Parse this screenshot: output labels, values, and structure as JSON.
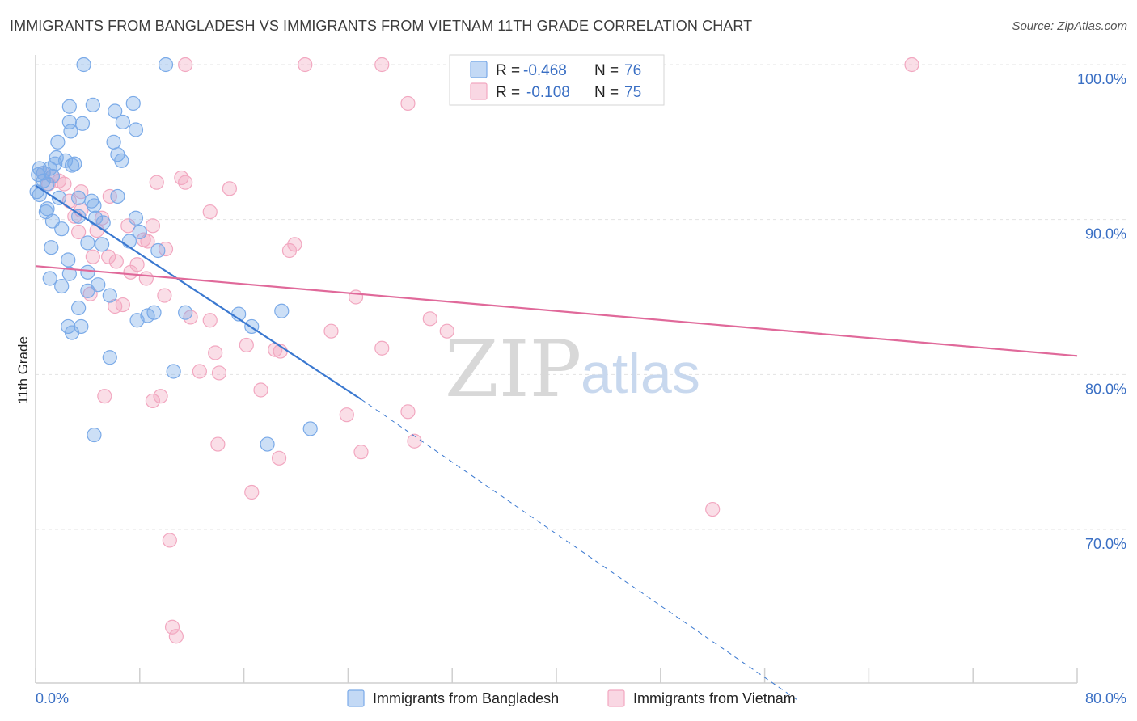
{
  "title": "IMMIGRANTS FROM BANGLADESH VS IMMIGRANTS FROM VIETNAM 11TH GRADE CORRELATION CHART",
  "source": "Source: ZipAtlas.com",
  "watermark": {
    "zip": "ZIP",
    "atlas": "atlas"
  },
  "legend_top": {
    "rows": [
      {
        "r_label": "R =",
        "r_value": "-0.468",
        "n_label": "N =",
        "n_value": "76"
      },
      {
        "r_label": "R =",
        "r_value": "-0.108",
        "n_label": "N =",
        "n_value": "75"
      }
    ]
  },
  "legend_bottom": {
    "items": [
      "Immigrants from Bangladesh",
      "Immigrants from Vietnam"
    ]
  },
  "colors": {
    "bangladesh": "#7aaae8",
    "bangladesh_line": "#3a78d0",
    "vietnam": "#f2a7c0",
    "vietnam_line": "#e0699a",
    "tick_text": "#3a6fc4",
    "grid": "#e3e3e3"
  },
  "chart_data": {
    "type": "scatter",
    "title": "IMMIGRANTS FROM BANGLADESH VS IMMIGRANTS FROM VIETNAM 11TH GRADE CORRELATION CHART",
    "xlabel": "",
    "ylabel": "11th Grade",
    "xlim": [
      0,
      80
    ],
    "ylim": [
      60,
      100
    ],
    "x_tick_labels": [
      "0.0%",
      "80.0%"
    ],
    "y_ticks": [
      70,
      80,
      90,
      100
    ],
    "y_tick_labels": [
      "70.0%",
      "80.0%",
      "90.0%",
      "100.0%"
    ],
    "grid": true,
    "legend_position": "top-center",
    "series": [
      {
        "name": "Immigrants from Bangladesh",
        "r": -0.468,
        "n": 76,
        "trend": {
          "x0": 0,
          "y0": 92.2,
          "x1": 25,
          "y1": 78.4,
          "dash_x1": 58.5,
          "dash_y1": 59.0
        },
        "points": [
          [
            3.7,
            100
          ],
          [
            10.0,
            100
          ],
          [
            4.4,
            97.4
          ],
          [
            6.1,
            97.0
          ],
          [
            7.5,
            97.5
          ],
          [
            2.6,
            97.3
          ],
          [
            2.6,
            96.3
          ],
          [
            3.6,
            96.2
          ],
          [
            6.7,
            96.3
          ],
          [
            2.7,
            95.7
          ],
          [
            7.7,
            95.8
          ],
          [
            1.7,
            95.0
          ],
          [
            6.0,
            95.0
          ],
          [
            6.3,
            94.2
          ],
          [
            1.6,
            94.0
          ],
          [
            2.3,
            93.8
          ],
          [
            6.6,
            93.8
          ],
          [
            1.5,
            93.6
          ],
          [
            3.0,
            93.6
          ],
          [
            2.8,
            93.5
          ],
          [
            0.3,
            93.3
          ],
          [
            1.1,
            93.3
          ],
          [
            0.6,
            93.0
          ],
          [
            0.2,
            92.9
          ],
          [
            1.3,
            92.8
          ],
          [
            0.6,
            92.5
          ],
          [
            0.9,
            92.3
          ],
          [
            0.1,
            91.8
          ],
          [
            0.3,
            91.6
          ],
          [
            6.3,
            91.5
          ],
          [
            1.8,
            91.4
          ],
          [
            3.3,
            91.4
          ],
          [
            4.3,
            91.2
          ],
          [
            0.9,
            90.7
          ],
          [
            4.5,
            90.9
          ],
          [
            0.8,
            90.5
          ],
          [
            3.3,
            90.2
          ],
          [
            4.6,
            90.1
          ],
          [
            1.3,
            89.9
          ],
          [
            7.7,
            90.1
          ],
          [
            2.0,
            89.4
          ],
          [
            5.2,
            89.8
          ],
          [
            8.0,
            89.2
          ],
          [
            4.0,
            88.5
          ],
          [
            7.2,
            88.6
          ],
          [
            5.1,
            88.4
          ],
          [
            1.2,
            88.2
          ],
          [
            9.4,
            88.0
          ],
          [
            2.5,
            87.4
          ],
          [
            4.0,
            86.6
          ],
          [
            2.6,
            86.5
          ],
          [
            1.1,
            86.2
          ],
          [
            4.8,
            85.8
          ],
          [
            2.0,
            85.7
          ],
          [
            4.0,
            85.4
          ],
          [
            5.7,
            85.1
          ],
          [
            3.3,
            84.3
          ],
          [
            9.1,
            84.0
          ],
          [
            11.5,
            84.0
          ],
          [
            15.6,
            83.9
          ],
          [
            18.9,
            84.1
          ],
          [
            8.6,
            83.8
          ],
          [
            7.8,
            83.5
          ],
          [
            2.5,
            83.1
          ],
          [
            3.5,
            83.1
          ],
          [
            16.6,
            83.1
          ],
          [
            2.8,
            82.7
          ],
          [
            5.7,
            81.1
          ],
          [
            10.6,
            80.2
          ],
          [
            21.1,
            76.5
          ],
          [
            17.8,
            75.5
          ],
          [
            4.5,
            76.1
          ]
        ]
      },
      {
        "name": "Immigrants from Vietnam",
        "r": -0.108,
        "n": 75,
        "trend": {
          "x0": 0,
          "y0": 87.0,
          "x1": 80,
          "y1": 81.2
        },
        "points": [
          [
            11.5,
            100
          ],
          [
            20.7,
            100
          ],
          [
            26.6,
            100
          ],
          [
            67.3,
            100
          ],
          [
            28.6,
            97.5
          ],
          [
            11.2,
            92.7
          ],
          [
            11.5,
            92.4
          ],
          [
            9.3,
            92.4
          ],
          [
            14.9,
            92.0
          ],
          [
            0.6,
            93.0
          ],
          [
            1.3,
            92.8
          ],
          [
            1.0,
            92.3
          ],
          [
            1.8,
            92.5
          ],
          [
            2.2,
            92.3
          ],
          [
            3.5,
            91.8
          ],
          [
            5.7,
            91.5
          ],
          [
            2.6,
            91.2
          ],
          [
            3.5,
            90.6
          ],
          [
            13.4,
            90.5
          ],
          [
            3.0,
            90.2
          ],
          [
            5.1,
            90.1
          ],
          [
            7.1,
            89.6
          ],
          [
            9.0,
            89.6
          ],
          [
            4.7,
            89.3
          ],
          [
            3.3,
            89.2
          ],
          [
            8.3,
            88.7
          ],
          [
            8.6,
            88.6
          ],
          [
            19.9,
            88.4
          ],
          [
            19.5,
            88.0
          ],
          [
            10.0,
            88.1
          ],
          [
            5.6,
            87.6
          ],
          [
            4.4,
            87.6
          ],
          [
            6.2,
            87.3
          ],
          [
            7.8,
            87.1
          ],
          [
            7.3,
            86.6
          ],
          [
            8.5,
            86.2
          ],
          [
            4.2,
            85.2
          ],
          [
            9.9,
            85.1
          ],
          [
            24.6,
            85.0
          ],
          [
            6.1,
            84.4
          ],
          [
            6.7,
            84.5
          ],
          [
            11.9,
            83.7
          ],
          [
            13.4,
            83.5
          ],
          [
            30.3,
            83.6
          ],
          [
            31.6,
            82.8
          ],
          [
            22.7,
            82.8
          ],
          [
            16.2,
            81.9
          ],
          [
            18.4,
            81.6
          ],
          [
            26.6,
            81.7
          ],
          [
            18.8,
            81.5
          ],
          [
            13.8,
            81.4
          ],
          [
            12.6,
            80.2
          ],
          [
            14.1,
            80.1
          ],
          [
            17.3,
            79.0
          ],
          [
            5.3,
            78.6
          ],
          [
            9.6,
            78.6
          ],
          [
            9.0,
            78.3
          ],
          [
            23.9,
            77.4
          ],
          [
            28.6,
            77.6
          ],
          [
            29.1,
            75.7
          ],
          [
            14.0,
            75.5
          ],
          [
            18.7,
            74.6
          ],
          [
            25.0,
            75.0
          ],
          [
            16.6,
            72.4
          ],
          [
            52.0,
            71.3
          ],
          [
            10.3,
            69.3
          ],
          [
            10.5,
            63.7
          ],
          [
            10.8,
            63.1
          ]
        ]
      }
    ]
  }
}
